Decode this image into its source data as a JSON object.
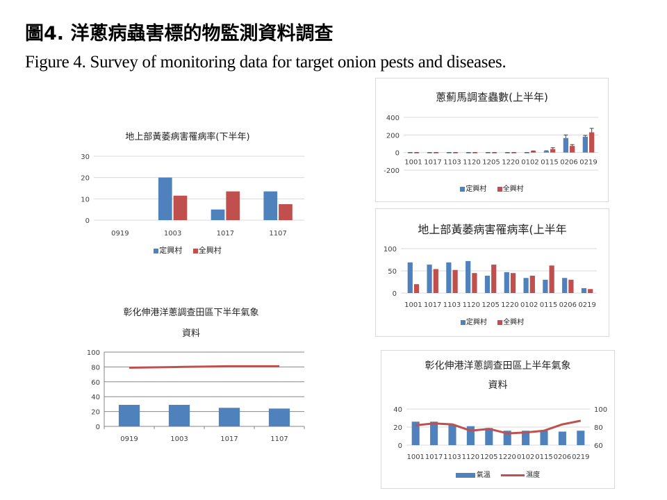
{
  "page": {
    "title_zh": "圖4. 洋蔥病蟲害標的物監測資料調查",
    "title_en": "Figure 4. Survey of monitoring data for target onion pests and diseases."
  },
  "colors": {
    "blue": "#4f81bd",
    "red": "#c0504d",
    "grid": "#d9d9d9",
    "axis": "#868686"
  },
  "chart_data": [
    {
      "id": "yellowing_second_half",
      "type": "bar",
      "title": "地上部黃萎病害罹病率(下半年)",
      "categories": [
        "0919",
        "1003",
        "1017",
        "1107"
      ],
      "series": [
        {
          "name": "定興村",
          "values": [
            0,
            20,
            5,
            13.5
          ]
        },
        {
          "name": "全興村",
          "values": [
            0,
            11.5,
            13.5,
            7.5
          ]
        }
      ],
      "ylim": [
        0,
        30
      ],
      "yticks": [
        0,
        10,
        20,
        30
      ],
      "grid": true,
      "legend_position": "bottom",
      "xlabel": "",
      "ylabel": ""
    },
    {
      "id": "thrips_first_half",
      "type": "bar",
      "title": "蔥薊馬調查蟲數(上半年)",
      "categories": [
        "1001",
        "1017",
        "1103",
        "1120",
        "1205",
        "1220",
        "0102",
        "0115",
        "0206",
        "0219"
      ],
      "series": [
        {
          "name": "定興村",
          "values": [
            0,
            0,
            0,
            0,
            0,
            0,
            0,
            15,
            165,
            180
          ],
          "error": [
            0,
            0,
            0,
            0,
            0,
            0,
            0,
            5,
            35,
            15
          ]
        },
        {
          "name": "全興村",
          "values": [
            0,
            0,
            0,
            0,
            0,
            0,
            15,
            40,
            75,
            230
          ],
          "error": [
            0,
            0,
            0,
            0,
            0,
            0,
            3,
            15,
            15,
            45
          ]
        }
      ],
      "ylim": [
        -200,
        400
      ],
      "yticks": [
        -200,
        0,
        200,
        400
      ],
      "grid": true,
      "legend_position": "bottom",
      "error_bars": true,
      "xlabel": "",
      "ylabel": ""
    },
    {
      "id": "yellowing_first_half",
      "type": "bar",
      "title": "地上部黃萎病害罹病率(上半年",
      "categories": [
        "1001",
        "1017",
        "1103",
        "1120",
        "1205",
        "1220",
        "0102",
        "0115",
        "0206",
        "0219"
      ],
      "series": [
        {
          "name": "定興村",
          "values": [
            69,
            64,
            69,
            72,
            39,
            47,
            34,
            30,
            34,
            11
          ]
        },
        {
          "name": "全興村",
          "values": [
            20,
            54,
            52,
            45,
            64,
            45,
            39,
            62,
            30,
            9
          ]
        }
      ],
      "ylim": [
        0,
        100
      ],
      "yticks": [
        0,
        50,
        100
      ],
      "grid": true,
      "legend_position": "bottom",
      "xlabel": "",
      "ylabel": ""
    },
    {
      "id": "weather_second_half",
      "type": "bar+line",
      "title": "彰化伸港洋蔥調查田區下半年氣象資料",
      "title_lines": [
        "彰化伸港洋蔥調查田區下半年氣象",
        "資料"
      ],
      "categories": [
        "0919",
        "1003",
        "1017",
        "1107"
      ],
      "series": [
        {
          "name": "氣溫",
          "type": "bar",
          "values": [
            29,
            29,
            25,
            24
          ]
        },
        {
          "name": "濕度",
          "type": "line",
          "values": [
            79,
            80,
            81,
            81
          ]
        }
      ],
      "ylim": [
        0,
        100
      ],
      "yticks": [
        0,
        20,
        40,
        60,
        80,
        100
      ],
      "grid": true,
      "legend_position": "none",
      "xlabel": "",
      "ylabel": ""
    },
    {
      "id": "weather_first_half",
      "type": "bar+line",
      "title": "彰化伸港洋蔥調查田區上半年氣象資料",
      "title_lines": [
        "彰化伸港洋蔥調查田區上半年氣象",
        "資料"
      ],
      "categories": [
        "1001",
        "1017",
        "1103",
        "1120",
        "1205",
        "1220",
        "0102",
        "0115",
        "0206",
        "0219"
      ],
      "series": [
        {
          "name": "氣溫",
          "type": "bar",
          "axis": "left",
          "values": [
            26,
            26,
            23,
            21,
            19,
            16,
            16,
            16,
            15,
            16
          ]
        },
        {
          "name": "濕度",
          "type": "line",
          "axis": "right",
          "values": [
            82,
            84,
            83,
            76,
            78,
            73,
            74,
            76,
            83,
            87
          ]
        }
      ],
      "ylim": [
        0,
        40
      ],
      "yticks": [
        0,
        20,
        40
      ],
      "y2lim": [
        60,
        100
      ],
      "y2ticks": [
        60,
        80,
        100
      ],
      "grid": true,
      "legend_position": "bottom",
      "xlabel": "",
      "ylabel": ""
    }
  ],
  "legends": {
    "villages": [
      "定興村",
      "全興村"
    ],
    "weather": [
      "氣溫",
      "濕度"
    ]
  }
}
